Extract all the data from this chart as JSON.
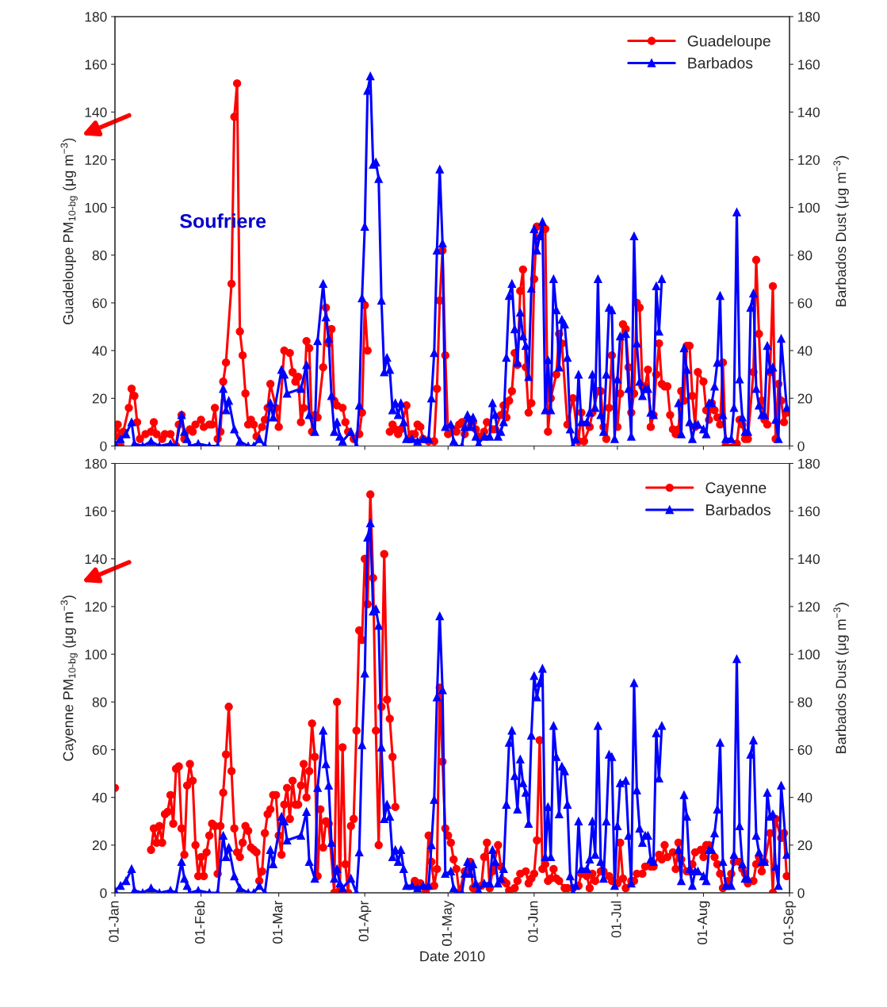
{
  "chart_data": [
    {
      "type": "line",
      "ylabel": "Guadeloupe PM$_{10-bg}$ (μg m$^{−3}$)",
      "y2label": "Barbados Dust (μg m$^{−3}$)",
      "xlim": [
        "2010-01-01",
        "2010-09-01"
      ],
      "xticks": [
        {
          "value": "2010-01-01",
          "label": null
        },
        {
          "value": "2010-02-01",
          "label": null
        },
        {
          "value": "2010-03-01",
          "label": null
        },
        {
          "value": "2010-04-01",
          "label": null
        },
        {
          "value": "2010-05-01",
          "label": null
        },
        {
          "value": "2010-06-01",
          "label": null
        },
        {
          "value": "2010-07-01",
          "label": null
        },
        {
          "value": "2010-08-01",
          "label": null
        },
        {
          "value": "2010-09-01",
          "label": null
        }
      ],
      "ylim": [
        0,
        180
      ],
      "yticks": [
        0,
        20,
        40,
        60,
        80,
        100,
        120,
        140,
        160,
        180
      ],
      "y2lim": [
        0,
        180
      ],
      "y2ticks": [
        0,
        20,
        40,
        60,
        80,
        100,
        120,
        140,
        160,
        180
      ],
      "tick_labels": "y",
      "legend": "top right",
      "grid": false,
      "annotations": [
        "Soufriere"
      ],
      "series": [
        {
          "name": "Guadeloupe",
          "color": "#ff0000",
          "marker": "circle",
          "x": [
            "2010-01-01",
            "2010-01-02",
            "2010-01-03",
            "2010-01-04",
            "2010-01-06",
            "2010-01-07",
            "2010-01-08",
            "2010-01-09",
            "2010-01-10",
            "2010-01-12",
            "2010-01-14",
            "2010-01-15",
            "2010-01-16",
            "2010-01-18",
            "2010-01-19",
            "2010-01-21",
            "2010-01-23",
            "2010-01-24",
            "2010-01-25",
            "2010-01-26",
            "2010-01-28",
            "2010-01-29",
            "2010-01-30",
            "2010-02-01",
            "2010-02-02",
            "2010-02-04",
            "2010-02-05",
            "2010-02-06",
            "2010-02-07",
            "2010-02-08",
            "2010-02-09",
            "2010-02-10",
            "2010-02-12",
            "2010-02-13",
            "2010-02-14",
            "2010-02-15",
            "2010-02-16",
            "2010-02-17",
            "2010-02-18",
            "2010-02-19",
            "2010-02-20",
            "2010-02-21",
            "2010-02-23",
            "2010-02-24",
            "2010-02-25",
            "2010-02-26",
            "2010-02-28",
            "2010-03-01",
            "2010-03-03",
            "2010-03-05",
            "2010-03-06",
            "2010-03-07",
            "2010-03-08",
            "2010-03-09",
            "2010-03-10",
            "2010-03-11",
            "2010-03-12",
            "2010-03-13",
            "2010-03-14",
            "2010-03-15",
            "2010-03-17",
            "2010-03-18",
            "2010-03-19",
            "2010-03-20",
            "2010-03-21",
            "2010-03-22",
            "2010-03-24",
            "2010-03-25",
            "2010-03-26",
            "2010-03-28",
            "2010-03-30",
            "2010-03-31",
            "2010-04-01",
            "2010-04-02",
            "2010-04-06",
            "2010-04-10",
            "2010-04-11",
            "2010-04-12",
            "2010-04-13",
            "2010-04-14",
            "2010-04-16",
            "2010-04-17",
            "2010-04-18",
            "2010-04-19",
            "2010-04-20",
            "2010-04-21",
            "2010-04-22",
            "2010-04-24",
            "2010-04-26",
            "2010-04-27",
            "2010-04-28",
            "2010-04-29",
            "2010-04-30",
            "2010-05-01",
            "2010-05-03",
            "2010-05-04",
            "2010-05-05",
            "2010-05-06",
            "2010-05-07",
            "2010-05-09",
            "2010-05-10",
            "2010-05-11",
            "2010-05-12",
            "2010-05-14",
            "2010-05-15",
            "2010-05-17",
            "2010-05-18",
            "2010-05-20",
            "2010-05-21",
            "2010-05-22",
            "2010-05-23",
            "2010-05-24",
            "2010-05-25",
            "2010-05-26",
            "2010-05-27",
            "2010-05-28",
            "2010-05-29",
            "2010-05-30",
            "2010-05-31",
            "2010-06-01",
            "2010-06-02",
            "2010-06-04",
            "2010-06-05",
            "2010-06-06",
            "2010-06-07",
            "2010-06-09",
            "2010-06-10",
            "2010-06-11",
            "2010-06-13",
            "2010-06-15",
            "2010-06-17",
            "2010-06-18",
            "2010-06-19",
            "2010-06-21",
            "2010-06-22",
            "2010-06-24",
            "2010-06-25",
            "2010-06-26",
            "2010-06-27",
            "2010-06-28",
            "2010-06-29",
            "2010-07-01",
            "2010-07-02",
            "2010-07-03",
            "2010-07-04",
            "2010-07-05",
            "2010-07-06",
            "2010-07-07",
            "2010-07-08",
            "2010-07-09",
            "2010-07-10",
            "2010-07-11",
            "2010-07-12",
            "2010-07-13",
            "2010-07-14",
            "2010-07-15",
            "2010-07-16",
            "2010-07-17",
            "2010-07-18",
            "2010-07-19",
            "2010-07-20",
            "2010-07-21",
            "2010-07-22",
            "2010-07-23",
            "2010-07-24",
            "2010-07-25",
            "2010-07-26",
            "2010-07-27",
            "2010-07-28",
            "2010-07-29",
            "2010-07-30",
            "2010-08-01",
            "2010-08-02",
            "2010-08-03",
            "2010-08-04",
            "2010-08-05",
            "2010-08-06",
            "2010-08-07",
            "2010-08-08",
            "2010-08-09",
            "2010-08-13",
            "2010-08-14",
            "2010-08-15",
            "2010-08-16",
            "2010-08-17",
            "2010-08-19",
            "2010-08-20",
            "2010-08-21",
            "2010-08-22",
            "2010-08-23",
            "2010-08-24",
            "2010-08-25",
            "2010-08-26",
            "2010-08-27",
            "2010-08-28",
            "2010-08-29",
            "2010-08-30",
            "2010-08-31"
          ],
          "values": [
            4,
            9,
            0,
            6,
            16,
            24,
            21,
            10,
            3,
            5,
            6,
            10,
            5,
            3,
            5,
            5,
            0,
            9,
            13,
            3,
            7,
            6,
            9,
            11,
            8,
            9,
            9,
            16,
            3,
            6,
            27,
            35,
            68,
            138,
            152,
            48,
            38,
            22,
            9,
            11,
            9,
            4,
            8,
            11,
            16,
            26,
            16,
            8,
            40,
            39,
            31,
            27,
            29,
            10,
            16,
            44,
            41,
            6,
            13,
            12,
            33,
            58,
            43,
            49,
            19,
            17,
            16,
            10,
            6,
            3,
            5,
            14,
            59,
            40,
            null,
            6,
            9,
            7,
            5,
            7,
            17,
            3,
            5,
            5,
            9,
            8,
            3,
            2,
            2,
            24,
            61,
            82,
            38,
            5,
            7,
            6,
            9,
            10,
            5,
            11,
            10,
            7,
            4,
            6,
            10,
            7,
            7,
            13,
            17,
            12,
            19,
            23,
            39,
            34,
            65,
            74,
            33,
            14,
            18,
            70,
            92,
            92,
            91,
            6,
            20,
            30,
            47,
            43,
            9,
            20,
            2,
            14,
            2,
            8,
            14,
            23,
            23,
            8,
            3,
            16,
            38,
            8,
            22,
            51,
            49,
            33,
            14,
            22,
            60,
            58,
            25,
            25,
            32,
            8,
            13,
            30,
            43,
            26,
            25,
            25,
            13,
            7,
            5,
            7,
            23,
            19,
            42,
            42,
            21,
            8,
            31,
            27,
            15,
            11,
            18,
            15,
            12,
            9,
            35,
            0,
            1,
            11,
            9,
            3,
            3,
            31,
            78,
            47,
            19,
            11,
            9,
            31,
            67,
            3,
            26,
            19,
            10,
            14
          ]
        },
        {
          "name": "Barbados",
          "color": "#0000ff",
          "marker": "triangle",
          "axis": "y2",
          "x": [
            "2010-01-01",
            "2010-01-03",
            "2010-01-05",
            "2010-01-07",
            "2010-01-08",
            "2010-01-11",
            "2010-01-14",
            "2010-01-17",
            "2010-01-21",
            "2010-01-23",
            "2010-01-25",
            "2010-01-26",
            "2010-01-27",
            "2010-01-28",
            "2010-01-31",
            "2010-02-04",
            "2010-02-07",
            "2010-02-09",
            "2010-02-10",
            "2010-02-11",
            "2010-02-13",
            "2010-02-15",
            "2010-02-18",
            "2010-02-20",
            "2010-02-22",
            "2010-02-24",
            "2010-02-26",
            "2010-02-27",
            "2010-03-02",
            "2010-03-03",
            "2010-03-04",
            "2010-03-09",
            "2010-03-11",
            "2010-03-12",
            "2010-03-14",
            "2010-03-15",
            "2010-03-17",
            "2010-03-18",
            "2010-03-19",
            "2010-03-20",
            "2010-03-21",
            "2010-03-22",
            "2010-03-23",
            "2010-03-24",
            "2010-03-27",
            "2010-03-29",
            "2010-03-30",
            "2010-03-31",
            "2010-04-01",
            "2010-04-02",
            "2010-04-03",
            "2010-04-04",
            "2010-04-05",
            "2010-04-06",
            "2010-04-07",
            "2010-04-08",
            "2010-04-09",
            "2010-04-10",
            "2010-04-11",
            "2010-04-12",
            "2010-04-13",
            "2010-04-14",
            "2010-04-15",
            "2010-04-16",
            "2010-04-18",
            "2010-04-20",
            "2010-04-22",
            "2010-04-24",
            "2010-04-25",
            "2010-04-26",
            "2010-04-27",
            "2010-04-28",
            "2010-04-29",
            "2010-04-30",
            "2010-05-02",
            "2010-05-03",
            "2010-05-04",
            "2010-05-06",
            "2010-05-07",
            "2010-05-08",
            "2010-05-09",
            "2010-05-10",
            "2010-05-11",
            "2010-05-12",
            "2010-05-14",
            "2010-05-16",
            "2010-05-17",
            "2010-05-18",
            "2010-05-19",
            "2010-05-20",
            "2010-05-21",
            "2010-05-22",
            "2010-05-23",
            "2010-05-24",
            "2010-05-25",
            "2010-05-26",
            "2010-05-27",
            "2010-05-28",
            "2010-05-29",
            "2010-05-30",
            "2010-05-31",
            "2010-06-01",
            "2010-06-02",
            "2010-06-03",
            "2010-06-04",
            "2010-06-05",
            "2010-06-06",
            "2010-06-07",
            "2010-06-08",
            "2010-06-09",
            "2010-06-10",
            "2010-06-11",
            "2010-06-12",
            "2010-06-13",
            "2010-06-14",
            "2010-06-15",
            "2010-06-16",
            "2010-06-17",
            "2010-06-18",
            "2010-06-20",
            "2010-06-21",
            "2010-06-22",
            "2010-06-23",
            "2010-06-24",
            "2010-06-25",
            "2010-06-26",
            "2010-06-27",
            "2010-06-28",
            "2010-06-29",
            "2010-06-30",
            "2010-07-01",
            "2010-07-02",
            "2010-07-04",
            "2010-07-05",
            "2010-07-06",
            "2010-07-07",
            "2010-07-08",
            "2010-07-09",
            "2010-07-10",
            "2010-07-11",
            "2010-07-12",
            "2010-07-13",
            "2010-07-14",
            "2010-07-15",
            "2010-07-16",
            "2010-07-17",
            "2010-07-20",
            "2010-07-23",
            "2010-07-24",
            "2010-07-25",
            "2010-07-26",
            "2010-07-27",
            "2010-07-28",
            "2010-07-29",
            "2010-07-30",
            "2010-08-01",
            "2010-08-02",
            "2010-08-03",
            "2010-08-04",
            "2010-08-05",
            "2010-08-06",
            "2010-08-07",
            "2010-08-08",
            "2010-08-09",
            "2010-08-11",
            "2010-08-12",
            "2010-08-13",
            "2010-08-14",
            "2010-08-15",
            "2010-08-16",
            "2010-08-17",
            "2010-08-18",
            "2010-08-19",
            "2010-08-20",
            "2010-08-21",
            "2010-08-22",
            "2010-08-23",
            "2010-08-24",
            "2010-08-25",
            "2010-08-26",
            "2010-08-27",
            "2010-08-28",
            "2010-08-29",
            "2010-08-31"
          ],
          "values": [
            1,
            3,
            5,
            10,
            1,
            0,
            2,
            0,
            1,
            0,
            13,
            6,
            3,
            0,
            1,
            0,
            0,
            24,
            15,
            19,
            7,
            2,
            0,
            0,
            3,
            0,
            18,
            12,
            32,
            30,
            22,
            24,
            34,
            13,
            6,
            44,
            68,
            54,
            45,
            21,
            6,
            10,
            4,
            2,
            6,
            0,
            17,
            62,
            92,
            149,
            155,
            118,
            119,
            112,
            61,
            31,
            37,
            32,
            15,
            18,
            13,
            18,
            10,
            3,
            3,
            2,
            3,
            3,
            20,
            39,
            82,
            116,
            85,
            8,
            9,
            2,
            0,
            0,
            8,
            13,
            8,
            12,
            4,
            1,
            4,
            4,
            18,
            13,
            4,
            6,
            10,
            37,
            63,
            68,
            49,
            35,
            56,
            46,
            42,
            29,
            66,
            91,
            82,
            88,
            94,
            15,
            36,
            15,
            70,
            57,
            33,
            53,
            51,
            37,
            7,
            0,
            3,
            30,
            10,
            10,
            14,
            30,
            16,
            70,
            13,
            6,
            30,
            58,
            57,
            3,
            28,
            46,
            47,
            24,
            4,
            88,
            43,
            27,
            21,
            24,
            24,
            14,
            13,
            67,
            48,
            70,
            null,
            18,
            5,
            41,
            32,
            10,
            3,
            9,
            9,
            7,
            5,
            18,
            18,
            25,
            35,
            63,
            13,
            3,
            3,
            16,
            98,
            28,
            12,
            6,
            6,
            58,
            64,
            24,
            17,
            13,
            13,
            42,
            32,
            33,
            11,
            3,
            45,
            16
          ]
        }
      ]
    },
    {
      "type": "line",
      "xlabel": "Date 2010",
      "ylabel": "Cayenne PM$_{10-bg}$ (μg m$^{−3}$)",
      "y2label": "Barbados Dust (μg m$^{−3}$)",
      "xlim": [
        "2010-01-01",
        "2010-09-01"
      ],
      "xticks": [
        {
          "value": "2010-01-01",
          "label": "01-Jan"
        },
        {
          "value": "2010-02-01",
          "label": "01-Feb"
        },
        {
          "value": "2010-03-01",
          "label": "01-Mar"
        },
        {
          "value": "2010-04-01",
          "label": "01-Apr"
        },
        {
          "value": "2010-05-01",
          "label": "01-May"
        },
        {
          "value": "2010-06-01",
          "label": "01-Jun"
        },
        {
          "value": "2010-07-01",
          "label": "01-Jul"
        },
        {
          "value": "2010-08-01",
          "label": "01-Aug"
        },
        {
          "value": "2010-09-01",
          "label": "01-Sep"
        }
      ],
      "ylim": [
        0,
        180
      ],
      "yticks": [
        0,
        20,
        40,
        60,
        80,
        100,
        120,
        140,
        160,
        180
      ],
      "y2lim": [
        0,
        180
      ],
      "y2ticks": [
        0,
        20,
        40,
        60,
        80,
        100,
        120,
        140,
        160,
        180
      ],
      "legend": "top right",
      "grid": false,
      "series": [
        {
          "name": "Cayenne",
          "color": "#ff0000",
          "marker": "circle",
          "x": [
            "2010-01-01",
            "2010-01-07",
            "2010-01-14",
            "2010-01-15",
            "2010-01-16",
            "2010-01-17",
            "2010-01-18",
            "2010-01-19",
            "2010-01-20",
            "2010-01-21",
            "2010-01-22",
            "2010-01-23",
            "2010-01-24",
            "2010-01-25",
            "2010-01-26",
            "2010-01-27",
            "2010-01-28",
            "2010-01-29",
            "2010-01-30",
            "2010-01-31",
            "2010-02-01",
            "2010-02-02",
            "2010-02-03",
            "2010-02-04",
            "2010-02-05",
            "2010-02-06",
            "2010-02-07",
            "2010-02-08",
            "2010-02-09",
            "2010-02-10",
            "2010-02-11",
            "2010-02-12",
            "2010-02-13",
            "2010-02-14",
            "2010-02-15",
            "2010-02-16",
            "2010-02-17",
            "2010-02-18",
            "2010-02-19",
            "2010-02-20",
            "2010-02-21",
            "2010-02-22",
            "2010-02-23",
            "2010-02-24",
            "2010-02-25",
            "2010-02-26",
            "2010-02-27",
            "2010-02-28",
            "2010-03-01",
            "2010-03-02",
            "2010-03-03",
            "2010-03-04",
            "2010-03-05",
            "2010-03-06",
            "2010-03-07",
            "2010-03-08",
            "2010-03-09",
            "2010-03-10",
            "2010-03-11",
            "2010-03-12",
            "2010-03-13",
            "2010-03-14",
            "2010-03-15",
            "2010-03-16",
            "2010-03-17",
            "2010-03-18",
            "2010-03-19",
            "2010-03-21",
            "2010-03-22",
            "2010-03-23",
            "2010-03-24",
            "2010-03-25",
            "2010-03-26",
            "2010-03-27",
            "2010-03-28",
            "2010-03-29",
            "2010-03-30",
            "2010-03-31",
            "2010-04-01",
            "2010-04-02",
            "2010-04-03",
            "2010-04-04",
            "2010-04-05",
            "2010-04-06",
            "2010-04-07",
            "2010-04-08",
            "2010-04-09",
            "2010-04-10",
            "2010-04-11",
            "2010-04-12",
            "2010-04-15",
            "2010-04-19",
            "2010-04-20",
            "2010-04-21",
            "2010-04-23",
            "2010-04-24",
            "2010-04-25",
            "2010-04-26",
            "2010-04-27",
            "2010-04-28",
            "2010-04-29",
            "2010-04-30",
            "2010-05-01",
            "2010-05-02",
            "2010-05-03",
            "2010-05-04",
            "2010-05-05",
            "2010-05-07",
            "2010-05-08",
            "2010-05-09",
            "2010-05-10",
            "2010-05-11",
            "2010-05-13",
            "2010-05-14",
            "2010-05-15",
            "2010-05-16",
            "2010-05-17",
            "2010-05-19",
            "2010-05-20",
            "2010-05-21",
            "2010-05-22",
            "2010-05-23",
            "2010-05-25",
            "2010-05-26",
            "2010-05-27",
            "2010-05-29",
            "2010-05-30",
            "2010-05-31",
            "2010-06-01",
            "2010-06-02",
            "2010-06-03",
            "2010-06-04",
            "2010-06-05",
            "2010-06-06",
            "2010-06-07",
            "2010-06-08",
            "2010-06-09",
            "2010-06-10",
            "2010-06-12",
            "2010-06-13",
            "2010-06-15",
            "2010-06-17",
            "2010-06-18",
            "2010-06-19",
            "2010-06-20",
            "2010-06-21",
            "2010-06-22",
            "2010-06-23",
            "2010-06-25",
            "2010-06-26",
            "2010-06-28",
            "2010-06-29",
            "2010-07-01",
            "2010-07-02",
            "2010-07-03",
            "2010-07-04",
            "2010-07-06",
            "2010-07-07",
            "2010-07-08",
            "2010-07-10",
            "2010-07-11",
            "2010-07-13",
            "2010-07-14",
            "2010-07-16",
            "2010-07-17",
            "2010-07-18",
            "2010-07-19",
            "2010-07-21",
            "2010-07-22",
            "2010-07-23",
            "2010-07-24",
            "2010-07-26",
            "2010-07-27",
            "2010-07-28",
            "2010-07-29",
            "2010-07-31",
            "2010-08-01",
            "2010-08-02",
            "2010-08-03",
            "2010-08-05",
            "2010-08-06",
            "2010-08-07",
            "2010-08-08",
            "2010-08-10",
            "2010-08-11",
            "2010-08-12",
            "2010-08-14",
            "2010-08-15",
            "2010-08-16",
            "2010-08-17",
            "2010-08-19",
            "2010-08-20",
            "2010-08-21",
            "2010-08-22",
            "2010-08-23",
            "2010-08-25",
            "2010-08-26",
            "2010-08-27",
            "2010-08-29",
            "2010-08-30",
            "2010-08-31"
          ],
          "values": [
            44,
            null,
            18,
            27,
            21,
            28,
            21,
            33,
            34,
            41,
            29,
            52,
            53,
            27,
            16,
            45,
            54,
            47,
            20,
            7,
            15,
            7,
            17,
            24,
            29,
            28,
            8,
            28,
            42,
            58,
            78,
            51,
            27,
            17,
            15,
            21,
            28,
            26,
            19,
            18,
            17,
            5,
            9,
            25,
            33,
            35,
            41,
            41,
            24,
            16,
            37,
            44,
            31,
            47,
            37,
            37,
            45,
            54,
            40,
            51,
            71,
            57,
            7,
            35,
            19,
            30,
            29,
            0,
            80,
            1,
            61,
            12,
            0,
            28,
            31,
            68,
            110,
            106,
            140,
            121,
            167,
            132,
            68,
            20,
            78,
            142,
            81,
            73,
            57,
            36,
            null,
            5,
            4,
            4,
            1,
            24,
            13,
            3,
            10,
            86,
            55,
            27,
            24,
            21,
            14,
            10,
            0,
            9,
            8,
            13,
            2,
            1,
            3,
            15,
            21,
            2,
            9,
            20,
            11,
            5,
            4,
            1,
            2,
            5,
            8,
            9,
            4,
            6,
            8,
            22,
            64,
            10,
            12,
            5,
            6,
            10,
            6,
            5,
            2,
            2,
            2,
            3,
            8,
            8,
            7,
            2,
            8,
            5,
            9,
            9,
            7,
            5,
            4,
            21,
            6,
            2,
            5,
            5,
            8,
            8,
            11,
            11,
            11,
            16,
            14,
            20,
            15,
            17,
            10,
            21,
            14,
            9,
            9,
            12,
            17,
            18,
            15,
            20,
            20,
            15,
            12,
            8,
            2,
            5,
            8,
            13,
            13,
            10,
            8,
            4,
            5,
            12,
            15,
            9,
            13,
            25,
            0,
            31,
            23,
            25,
            7
          ]
        },
        {
          "name": "Barbados",
          "color": "#0000ff",
          "marker": "triangle",
          "axis": "y2",
          "x": [
            "2010-01-01",
            "2010-01-03",
            "2010-01-05",
            "2010-01-07",
            "2010-01-08",
            "2010-01-11",
            "2010-01-14",
            "2010-01-17",
            "2010-01-21",
            "2010-01-23",
            "2010-01-25",
            "2010-01-26",
            "2010-01-27",
            "2010-01-28",
            "2010-01-31",
            "2010-02-04",
            "2010-02-07",
            "2010-02-09",
            "2010-02-10",
            "2010-02-11",
            "2010-02-13",
            "2010-02-15",
            "2010-02-18",
            "2010-02-20",
            "2010-02-22",
            "2010-02-24",
            "2010-02-26",
            "2010-02-27",
            "2010-03-02",
            "2010-03-03",
            "2010-03-04",
            "2010-03-09",
            "2010-03-11",
            "2010-03-12",
            "2010-03-14",
            "2010-03-15",
            "2010-03-17",
            "2010-03-18",
            "2010-03-19",
            "2010-03-20",
            "2010-03-21",
            "2010-03-22",
            "2010-03-23",
            "2010-03-24",
            "2010-03-27",
            "2010-03-29",
            "2010-03-30",
            "2010-03-31",
            "2010-04-01",
            "2010-04-02",
            "2010-04-03",
            "2010-04-04",
            "2010-04-05",
            "2010-04-06",
            "2010-04-07",
            "2010-04-08",
            "2010-04-09",
            "2010-04-10",
            "2010-04-11",
            "2010-04-12",
            "2010-04-13",
            "2010-04-14",
            "2010-04-15",
            "2010-04-16",
            "2010-04-18",
            "2010-04-20",
            "2010-04-22",
            "2010-04-24",
            "2010-04-25",
            "2010-04-26",
            "2010-04-27",
            "2010-04-28",
            "2010-04-29",
            "2010-04-30",
            "2010-05-02",
            "2010-05-03",
            "2010-05-04",
            "2010-05-06",
            "2010-05-07",
            "2010-05-08",
            "2010-05-09",
            "2010-05-10",
            "2010-05-11",
            "2010-05-12",
            "2010-05-14",
            "2010-05-16",
            "2010-05-17",
            "2010-05-18",
            "2010-05-19",
            "2010-05-20",
            "2010-05-21",
            "2010-05-22",
            "2010-05-23",
            "2010-05-24",
            "2010-05-25",
            "2010-05-26",
            "2010-05-27",
            "2010-05-28",
            "2010-05-29",
            "2010-05-30",
            "2010-05-31",
            "2010-06-01",
            "2010-06-02",
            "2010-06-03",
            "2010-06-04",
            "2010-06-05",
            "2010-06-06",
            "2010-06-07",
            "2010-06-08",
            "2010-06-09",
            "2010-06-10",
            "2010-06-11",
            "2010-06-12",
            "2010-06-13",
            "2010-06-14",
            "2010-06-15",
            "2010-06-16",
            "2010-06-17",
            "2010-06-18",
            "2010-06-20",
            "2010-06-21",
            "2010-06-22",
            "2010-06-23",
            "2010-06-24",
            "2010-06-25",
            "2010-06-26",
            "2010-06-27",
            "2010-06-28",
            "2010-06-29",
            "2010-06-30",
            "2010-07-01",
            "2010-07-02",
            "2010-07-04",
            "2010-07-05",
            "2010-07-06",
            "2010-07-07",
            "2010-07-08",
            "2010-07-09",
            "2010-07-10",
            "2010-07-11",
            "2010-07-12",
            "2010-07-13",
            "2010-07-14",
            "2010-07-15",
            "2010-07-16",
            "2010-07-17",
            "2010-07-20",
            "2010-07-23",
            "2010-07-24",
            "2010-07-25",
            "2010-07-26",
            "2010-07-27",
            "2010-07-28",
            "2010-07-29",
            "2010-07-30",
            "2010-08-01",
            "2010-08-02",
            "2010-08-03",
            "2010-08-04",
            "2010-08-05",
            "2010-08-06",
            "2010-08-07",
            "2010-08-08",
            "2010-08-09",
            "2010-08-11",
            "2010-08-12",
            "2010-08-13",
            "2010-08-14",
            "2010-08-15",
            "2010-08-16",
            "2010-08-17",
            "2010-08-18",
            "2010-08-19",
            "2010-08-20",
            "2010-08-21",
            "2010-08-22",
            "2010-08-23",
            "2010-08-24",
            "2010-08-25",
            "2010-08-26",
            "2010-08-27",
            "2010-08-28",
            "2010-08-29",
            "2010-08-31"
          ],
          "values": [
            1,
            3,
            5,
            10,
            1,
            0,
            2,
            0,
            1,
            0,
            13,
            6,
            3,
            0,
            1,
            0,
            0,
            24,
            15,
            19,
            7,
            2,
            0,
            0,
            3,
            0,
            18,
            12,
            32,
            30,
            22,
            24,
            34,
            13,
            6,
            44,
            68,
            54,
            45,
            21,
            6,
            10,
            4,
            2,
            6,
            0,
            17,
            62,
            92,
            149,
            155,
            118,
            119,
            112,
            61,
            31,
            37,
            32,
            15,
            18,
            13,
            18,
            10,
            3,
            3,
            2,
            3,
            3,
            20,
            39,
            82,
            116,
            85,
            8,
            9,
            2,
            0,
            0,
            8,
            13,
            8,
            12,
            4,
            1,
            4,
            4,
            18,
            13,
            4,
            6,
            10,
            37,
            63,
            68,
            49,
            35,
            56,
            46,
            42,
            29,
            66,
            91,
            82,
            88,
            94,
            15,
            36,
            15,
            70,
            57,
            33,
            53,
            51,
            37,
            7,
            0,
            3,
            30,
            10,
            10,
            14,
            30,
            16,
            70,
            13,
            6,
            30,
            58,
            57,
            3,
            28,
            46,
            47,
            24,
            4,
            88,
            43,
            27,
            21,
            24,
            24,
            14,
            13,
            67,
            48,
            70,
            null,
            18,
            5,
            41,
            32,
            10,
            3,
            9,
            9,
            7,
            5,
            18,
            18,
            25,
            35,
            63,
            13,
            3,
            3,
            16,
            98,
            28,
            12,
            6,
            6,
            58,
            64,
            24,
            17,
            13,
            13,
            42,
            32,
            33,
            11,
            3,
            45,
            16
          ]
        }
      ]
    }
  ]
}
